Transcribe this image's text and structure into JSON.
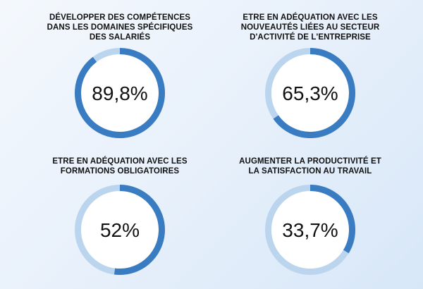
{
  "colors": {
    "track": "#bcd5ee",
    "progress": "#3a7cc2",
    "inner": "#ffffff"
  },
  "chart_data": [
    {
      "type": "pie",
      "title": "DÉVELOPPER DES COMPÉTENCES DANS LES DOMAINES SPÉCIFIQUES DES SALARIÉS",
      "value": 89.8,
      "label": "89,8%"
    },
    {
      "type": "pie",
      "title": "ETRE EN ADÉQUATION AVEC LES NOUVEAUTÉS LIÉES AU SECTEUR D'ACTIVITÉ DE L'ENTREPRISE",
      "value": 65.3,
      "label": "65,3%"
    },
    {
      "type": "pie",
      "title": "ETRE EN ADÉQUATION AVEC LES FORMATIONS OBLIGATOIRES",
      "value": 52,
      "label": "52%"
    },
    {
      "type": "pie",
      "title": "AUGMENTER LA PRODUCTIVITÉ ET LA SATISFACTION AU TRAVAIL",
      "value": 33.7,
      "label": "33,7%"
    }
  ]
}
